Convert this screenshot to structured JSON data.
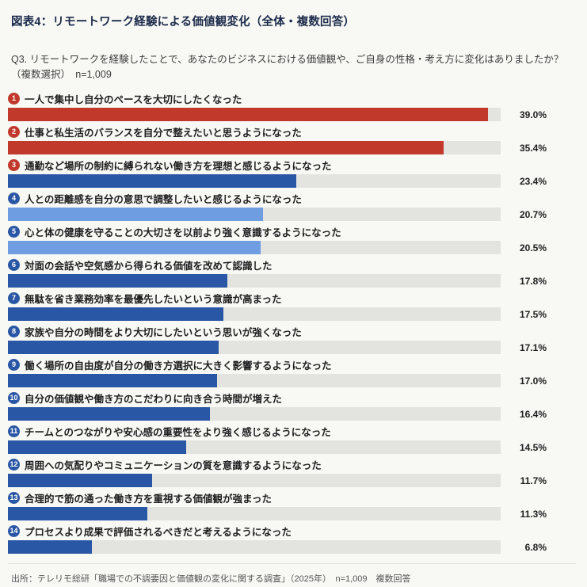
{
  "chart_data": {
    "type": "bar",
    "orientation": "horizontal",
    "title": "図表4：リモートワーク経験による価値観変化（全体・複数回答）",
    "subtitle": "Q3. リモートワークを経験したことで、あなたのビジネスにおける価値観や、ご自身の性格・考え方に変化はありましたか？（複数選択）　n=1,009",
    "xlim": [
      0,
      40
    ],
    "grid": false,
    "legend": false,
    "colors": {
      "red": "#c0392b",
      "blue": "#2a57a5",
      "light_blue": "#6f9de2",
      "track": "#e3e3df"
    },
    "items": [
      {
        "rank": 1,
        "label": "一人で集中し自分のペースを大切にしたくなった",
        "value": 39.0,
        "value_label": "39.0%",
        "color": "red",
        "badge": "red"
      },
      {
        "rank": 2,
        "label": "仕事と私生活のバランスを自分で整えたいと思うようになった",
        "value": 35.4,
        "value_label": "35.4%",
        "color": "red",
        "badge": "red"
      },
      {
        "rank": 3,
        "label": "通勤など場所の制約に縛られない働き方を理想と感じるようになった",
        "value": 23.4,
        "value_label": "23.4%",
        "color": "blue",
        "badge": "red"
      },
      {
        "rank": 4,
        "label": "人との距離感を自分の意思で調整したいと感じるようになった",
        "value": 20.7,
        "value_label": "20.7%",
        "color": "light_blue",
        "badge": "blue"
      },
      {
        "rank": 5,
        "label": "心と体の健康を守ることの大切さを以前より強く意識するようになった",
        "value": 20.5,
        "value_label": "20.5%",
        "color": "light_blue",
        "badge": "blue"
      },
      {
        "rank": 6,
        "label": "対面の会話や空気感から得られる価値を改めて認識した",
        "value": 17.8,
        "value_label": "17.8%",
        "color": "blue",
        "badge": "blue"
      },
      {
        "rank": 7,
        "label": "無駄を省き業務効率を最優先したいという意識が高まった",
        "value": 17.5,
        "value_label": "17.5%",
        "color": "blue",
        "badge": "blue"
      },
      {
        "rank": 8,
        "label": "家族や自分の時間をより大切にしたいという思いが強くなった",
        "value": 17.1,
        "value_label": "17.1%",
        "color": "blue",
        "badge": "blue"
      },
      {
        "rank": 9,
        "label": "働く場所の自由度が自分の働き方選択に大きく影響するようになった",
        "value": 17.0,
        "value_label": "17.0%",
        "color": "blue",
        "badge": "blue"
      },
      {
        "rank": 10,
        "label": "自分の価値観や働き方のこだわりに向き合う時間が増えた",
        "value": 16.4,
        "value_label": "16.4%",
        "color": "blue",
        "badge": "blue"
      },
      {
        "rank": 11,
        "label": "チームとのつながりや安心感の重要性をより強く感じるようになった",
        "value": 14.5,
        "value_label": "14.5%",
        "color": "blue",
        "badge": "blue"
      },
      {
        "rank": 12,
        "label": "周囲への気配りやコミュニケーションの質を意識するようになった",
        "value": 11.7,
        "value_label": "11.7%",
        "color": "blue",
        "badge": "blue"
      },
      {
        "rank": 13,
        "label": "合理的で筋の通った働き方を重視する価値観が強まった",
        "value": 11.3,
        "value_label": "11.3%",
        "color": "blue",
        "badge": "blue"
      },
      {
        "rank": 14,
        "label": "プロセスより成果で評価されるべきだと考えるようになった",
        "value": 6.8,
        "value_label": "6.8%",
        "color": "blue",
        "badge": "blue"
      }
    ],
    "source": "出所：テレリモ総研「職場での不調要因と価値観の変化に関する調査」（2025年）　n=1,009　複数回答"
  }
}
